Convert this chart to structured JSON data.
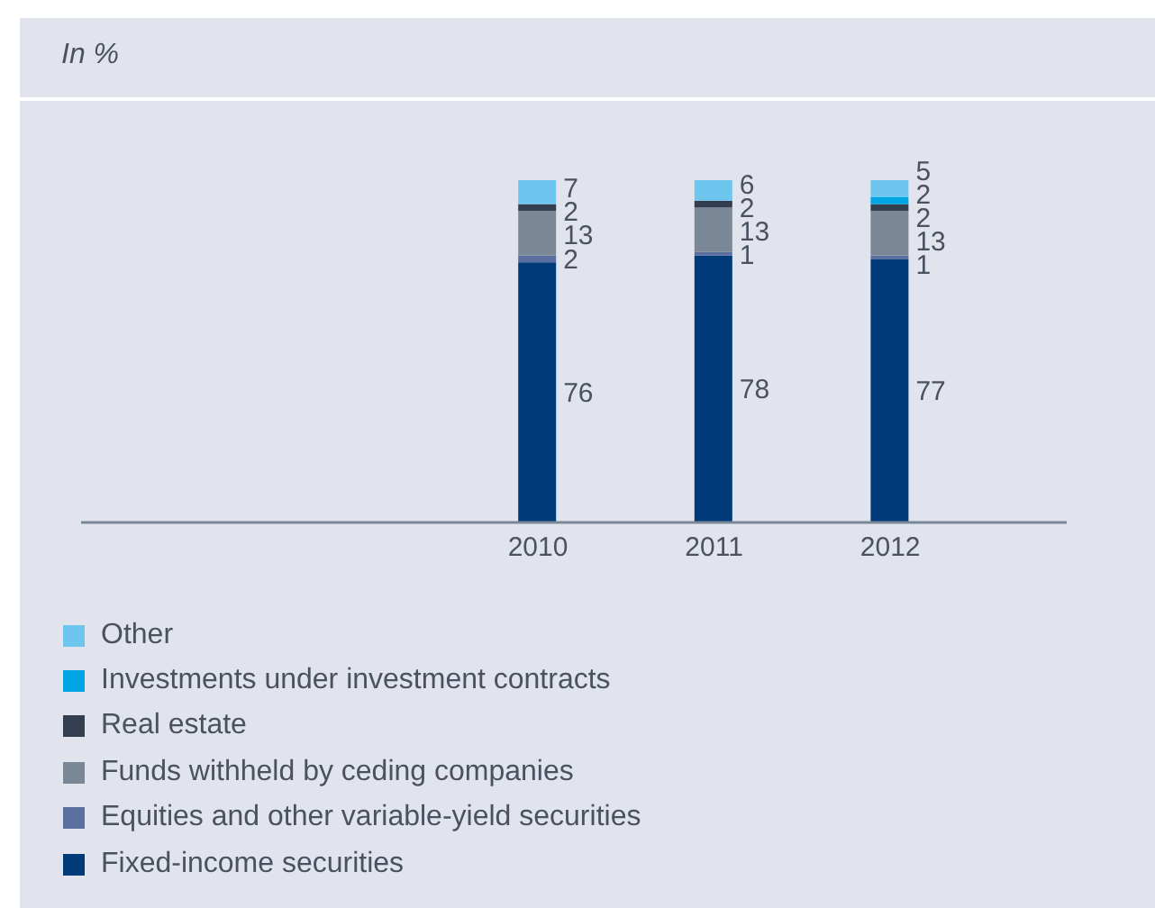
{
  "chart_data": {
    "type": "bar",
    "title": "In %",
    "stacked": true,
    "data_labels": true,
    "legend": "bottom",
    "grid": false,
    "categories": [
      null,
      null,
      "2010",
      "2011",
      "2012"
    ],
    "series": [
      {
        "name": "Fixed-income securities",
        "color": "#003a78",
        "values": [
          null,
          null,
          76,
          78,
          77
        ]
      },
      {
        "name": "Equities and other variable-yield securities",
        "color": "#5a6fa0",
        "values": [
          null,
          null,
          2,
          1,
          1
        ]
      },
      {
        "name": "Funds withheld by ceding companies",
        "color": "#7a8797",
        "values": [
          null,
          null,
          13,
          13,
          13
        ]
      },
      {
        "name": "Real estate",
        "color": "#333f50",
        "values": [
          null,
          null,
          2,
          2,
          2
        ]
      },
      {
        "name": "Investments under investment contracts",
        "color": "#00a5e3",
        "values": [
          null,
          null,
          null,
          null,
          2
        ]
      },
      {
        "name": "Other",
        "color": "#6ec6ee",
        "values": [
          null,
          null,
          7,
          6,
          5
        ]
      }
    ]
  }
}
